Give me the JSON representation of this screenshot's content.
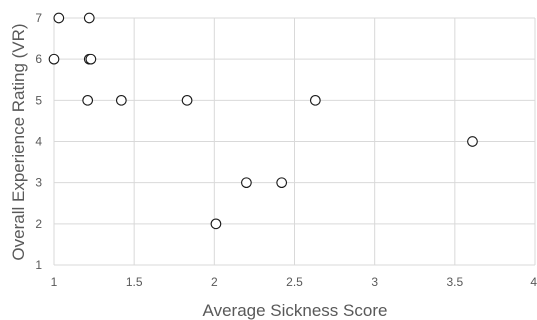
{
  "chart_data": {
    "type": "scatter",
    "title": "",
    "xlabel": "Average Sickness Score",
    "ylabel": "Overall Experience Rating (VR)",
    "xlim": [
      1,
      4
    ],
    "ylim": [
      1,
      7
    ],
    "xticks": [
      "1",
      "1.5",
      "2",
      "2.5",
      "3",
      "3.5",
      "4"
    ],
    "yticks": [
      "1",
      "2",
      "3",
      "4",
      "5",
      "6",
      "7"
    ],
    "grid": true,
    "legend": "none",
    "marker": "open-circle",
    "colors": {
      "marker_edge": "#1a1a1a",
      "grid": "#d9d9d9",
      "text": "#595959"
    },
    "points": [
      {
        "x": 1.03,
        "y": 7
      },
      {
        "x": 1.22,
        "y": 7
      },
      {
        "x": 1.0,
        "y": 6
      },
      {
        "x": 1.22,
        "y": 6
      },
      {
        "x": 1.23,
        "y": 6
      },
      {
        "x": 1.21,
        "y": 5
      },
      {
        "x": 1.42,
        "y": 5
      },
      {
        "x": 1.83,
        "y": 5
      },
      {
        "x": 2.63,
        "y": 5
      },
      {
        "x": 3.61,
        "y": 4
      },
      {
        "x": 2.2,
        "y": 3
      },
      {
        "x": 2.42,
        "y": 3
      },
      {
        "x": 2.01,
        "y": 2
      }
    ]
  }
}
